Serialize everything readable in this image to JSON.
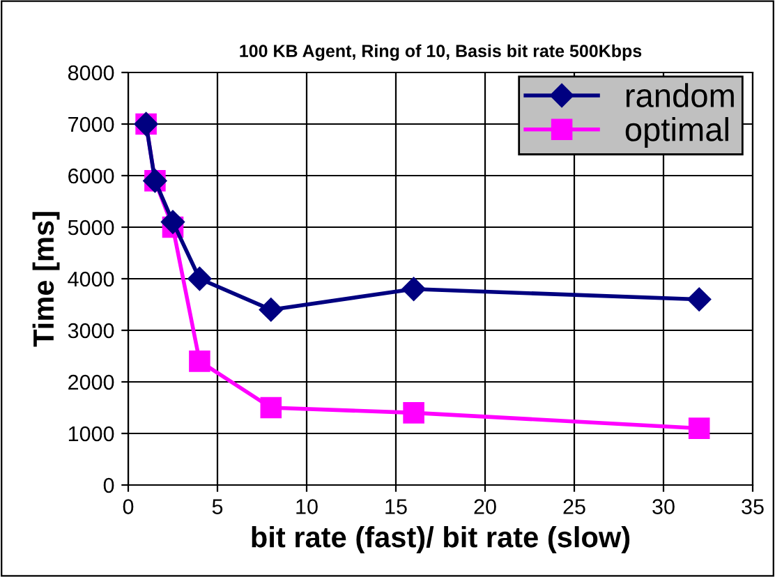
{
  "chart_data": {
    "type": "line",
    "title": "100 KB Agent, Ring of 10, Basis bit rate 500Kbps",
    "xlabel": "bit rate (fast)/ bit rate (slow)",
    "ylabel": "Time [ms]",
    "x": [
      1,
      1.5,
      2.5,
      4,
      8,
      16,
      32
    ],
    "series": [
      {
        "name": "random",
        "color": "#000080",
        "marker": "diamond",
        "values": [
          7000,
          5900,
          5100,
          4000,
          3400,
          3800,
          3600
        ]
      },
      {
        "name": "optimal",
        "color": "#ff00ff",
        "marker": "square",
        "values": [
          7000,
          5900,
          5000,
          2400,
          1500,
          1400,
          1100
        ]
      }
    ],
    "xlim": [
      0,
      35
    ],
    "xticks": [
      0,
      5,
      10,
      15,
      20,
      25,
      30,
      35
    ],
    "ylim": [
      0,
      8000
    ],
    "yticks": [
      0,
      1000,
      2000,
      3000,
      4000,
      5000,
      6000,
      7000,
      8000
    ],
    "grid": true,
    "legend": "top right",
    "line_style": "solid"
  }
}
